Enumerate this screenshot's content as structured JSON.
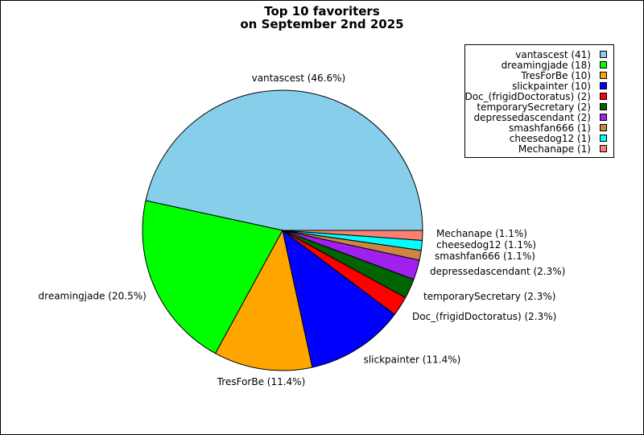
{
  "chart_data": {
    "type": "pie",
    "title": [
      "Top 10 favoriters",
      "on September 2nd 2025"
    ],
    "slices": [
      {
        "name": "vantascest",
        "value": 41,
        "label": "vantascest (46.6%)",
        "legend": "vantascest (41)",
        "color": "#87ceeb"
      },
      {
        "name": "dreamingjade",
        "value": 18,
        "label": "dreamingjade (20.5%)",
        "legend": "dreamingjade (18)",
        "color": "#00ff00"
      },
      {
        "name": "TresForBe",
        "value": 10,
        "label": "TresForBe (11.4%)",
        "legend": "TresForBe (10)",
        "color": "#ffa500"
      },
      {
        "name": "slickpainter",
        "value": 10,
        "label": "slickpainter (11.4%)",
        "legend": "slickpainter (10)",
        "color": "#0000ff"
      },
      {
        "name": "Doc_(frigidDoctoratus)",
        "value": 2,
        "label": "Doc_(frigidDoctoratus) (2.3%)",
        "legend": "Doc_(frigidDoctoratus) (2)",
        "color": "#ff0000"
      },
      {
        "name": "temporarySecretary",
        "value": 2,
        "label": "temporarySecretary (2.3%)",
        "legend": "temporarySecretary (2)",
        "color": "#006400"
      },
      {
        "name": "depressedascendant",
        "value": 2,
        "label": "depressedascendant (2.3%)",
        "legend": "depressedascendant (2)",
        "color": "#a020f0"
      },
      {
        "name": "smashfan666",
        "value": 1,
        "label": "smashfan666 (1.1%)",
        "legend": "smashfan666 (1)",
        "color": "#cd853f"
      },
      {
        "name": "cheesedog12",
        "value": 1,
        "label": "cheesedog12 (1.1%)",
        "legend": "cheesedog12 (1)",
        "color": "#00ffff"
      },
      {
        "name": "Mechanape",
        "value": 1,
        "label": "Mechanape (1.1%)",
        "legend": "Mechanape (1)",
        "color": "#fa8072"
      }
    ],
    "start_angle_deg": 0,
    "direction": "clockwise",
    "legend_placement": "top-right"
  }
}
